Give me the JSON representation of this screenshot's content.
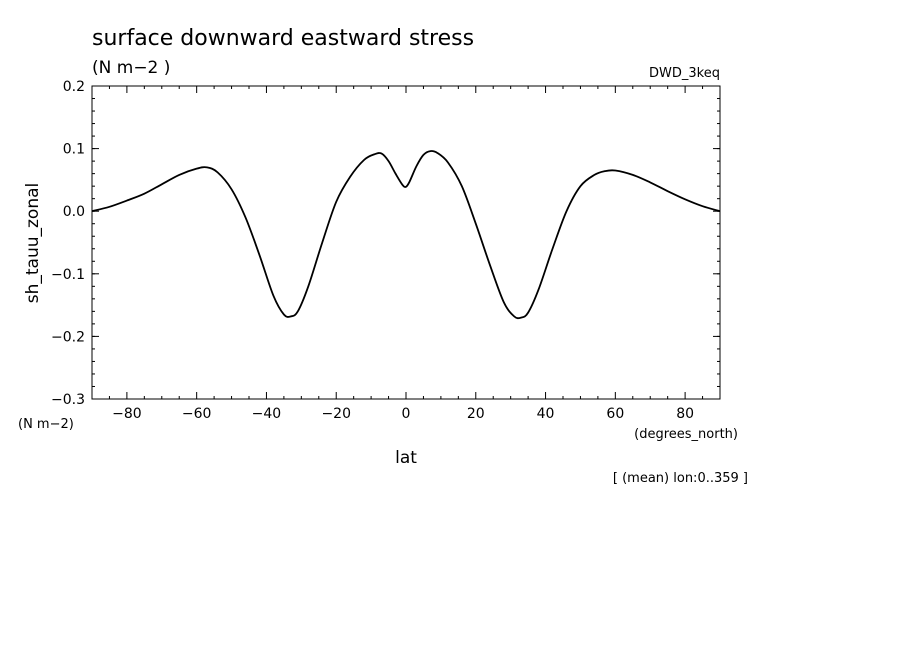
{
  "chart_data": {
    "type": "line",
    "title": "surface downward eastward stress",
    "subtitle": "(N m−2  )",
    "dataset_label": "DWD_3keq",
    "ylabel": "sh_tauu_zonal",
    "yunit": "(N m−2)",
    "xlabel": "lat",
    "xunit": "(degrees_north)",
    "footnote": "[ (mean) lon:0..359 ]",
    "xlim": [
      -90,
      90
    ],
    "ylim": [
      -0.3,
      0.2
    ],
    "x_ticks": [
      -80,
      -60,
      -40,
      -20,
      0,
      20,
      40,
      60,
      80
    ],
    "x_tick_labels": [
      "−80",
      "−60",
      "−40",
      "−20",
      "0",
      "20",
      "40",
      "60",
      "80"
    ],
    "y_ticks": [
      -0.3,
      -0.2,
      -0.1,
      0.0,
      0.1,
      0.2
    ],
    "y_tick_labels": [
      "−0.3",
      "−0.2",
      "−0.1",
      "0.0",
      "0.1",
      "0.2"
    ],
    "grid": false,
    "series": [
      {
        "x": [
          -90,
          -85,
          -80,
          -75,
          -70,
          -65,
          -60,
          -57,
          -54,
          -50,
          -46,
          -42,
          -38,
          -35,
          -33,
          -31,
          -28,
          -24,
          -20,
          -16,
          -12,
          -9,
          -7,
          -5,
          -3,
          -1,
          0,
          1,
          3,
          5,
          7,
          9,
          12,
          16,
          20,
          24,
          28,
          31,
          33,
          35,
          38,
          42,
          46,
          50,
          54,
          57,
          60,
          65,
          70,
          75,
          80,
          85,
          90
        ],
        "y": [
          0.0,
          0.007,
          0.017,
          0.028,
          0.043,
          0.058,
          0.068,
          0.07,
          0.062,
          0.035,
          -0.01,
          -0.07,
          -0.135,
          -0.165,
          -0.168,
          -0.16,
          -0.12,
          -0.05,
          0.015,
          0.055,
          0.082,
          0.091,
          0.092,
          0.08,
          0.06,
          0.042,
          0.039,
          0.047,
          0.072,
          0.09,
          0.096,
          0.093,
          0.078,
          0.04,
          -0.02,
          -0.085,
          -0.145,
          -0.168,
          -0.17,
          -0.162,
          -0.125,
          -0.06,
          0.0,
          0.04,
          0.058,
          0.064,
          0.065,
          0.058,
          0.046,
          0.032,
          0.019,
          0.008,
          0.0
        ]
      }
    ]
  }
}
